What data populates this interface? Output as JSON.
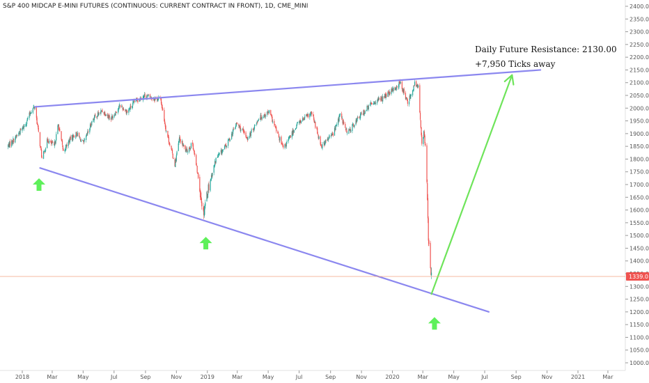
{
  "chart_data": {
    "type": "candlestick",
    "title": "S&P 400 MIDCAP E-MINI FUTURES (CONTINUOUS: CURRENT CONTRACT IN FRONT), 1D, CME_MINI",
    "x_axis": {
      "type": "date",
      "tick_labels": [
        {
          "label": "2018",
          "date": "2018-01-01"
        },
        {
          "label": "Mar",
          "date": "2018-03-01"
        },
        {
          "label": "May",
          "date": "2018-05-01"
        },
        {
          "label": "Jul",
          "date": "2018-07-01"
        },
        {
          "label": "Sep",
          "date": "2018-09-01"
        },
        {
          "label": "Nov",
          "date": "2018-11-01"
        },
        {
          "label": "2019",
          "date": "2019-01-01"
        },
        {
          "label": "Mar",
          "date": "2019-03-01"
        },
        {
          "label": "May",
          "date": "2019-05-01"
        },
        {
          "label": "Jul",
          "date": "2019-07-01"
        },
        {
          "label": "Sep",
          "date": "2019-09-01"
        },
        {
          "label": "Nov",
          "date": "2019-11-01"
        },
        {
          "label": "2020",
          "date": "2020-01-01"
        },
        {
          "label": "Mar",
          "date": "2020-03-01"
        },
        {
          "label": "May",
          "date": "2020-05-01"
        },
        {
          "label": "Jul",
          "date": "2020-07-01"
        },
        {
          "label": "Sep",
          "date": "2020-09-01"
        },
        {
          "label": "Nov",
          "date": "2020-11-01"
        },
        {
          "label": "2021",
          "date": "2021-01-01"
        },
        {
          "label": "Mar",
          "date": "2021-03-01"
        }
      ]
    },
    "y_axis": {
      "range": [
        950,
        2410
      ],
      "ticks": [
        "2400.0",
        "2350.0",
        "2300.0",
        "2250.0",
        "2200.0",
        "2150.0",
        "2100.0",
        "2050.0",
        "2000.0",
        "1950.0",
        "1900.0",
        "1850.0",
        "1800.0",
        "1750.0",
        "1700.0",
        "1650.0",
        "1600.0",
        "1550.0",
        "1500.0",
        "1450.0",
        "1400.0",
        "1350.0",
        "1300.0",
        "1250.0",
        "1200.0",
        "1150.0",
        "1100.0",
        "1050.0",
        "1000.0",
        "950.0"
      ]
    },
    "price_series": {
      "name": "",
      "points": [
        {
          "date": "2017-12-03",
          "close": 1850
        },
        {
          "date": "2017-12-17",
          "close": 1880
        },
        {
          "date": "2018-01-05",
          "close": 1930
        },
        {
          "date": "2018-01-20",
          "close": 1995
        },
        {
          "date": "2018-01-26",
          "close": 2005
        },
        {
          "date": "2018-02-09",
          "close": 1800
        },
        {
          "date": "2018-02-20",
          "close": 1875
        },
        {
          "date": "2018-03-05",
          "close": 1850
        },
        {
          "date": "2018-03-13",
          "close": 1935
        },
        {
          "date": "2018-03-23",
          "close": 1830
        },
        {
          "date": "2018-04-06",
          "close": 1880
        },
        {
          "date": "2018-04-18",
          "close": 1900
        },
        {
          "date": "2018-05-02",
          "close": 1860
        },
        {
          "date": "2018-05-21",
          "close": 1960
        },
        {
          "date": "2018-06-08",
          "close": 1990
        },
        {
          "date": "2018-06-25",
          "close": 1960
        },
        {
          "date": "2018-07-13",
          "close": 2010
        },
        {
          "date": "2018-07-27",
          "close": 1985
        },
        {
          "date": "2018-08-13",
          "close": 2030
        },
        {
          "date": "2018-08-31",
          "close": 2050
        },
        {
          "date": "2018-09-14",
          "close": 2040
        },
        {
          "date": "2018-10-01",
          "close": 2035
        },
        {
          "date": "2018-10-11",
          "close": 1920
        },
        {
          "date": "2018-10-29",
          "close": 1780
        },
        {
          "date": "2018-11-07",
          "close": 1880
        },
        {
          "date": "2018-11-20",
          "close": 1830
        },
        {
          "date": "2018-12-03",
          "close": 1860
        },
        {
          "date": "2018-12-13",
          "close": 1740
        },
        {
          "date": "2018-12-24",
          "close": 1590
        },
        {
          "date": "2019-01-02",
          "close": 1680
        },
        {
          "date": "2019-01-18",
          "close": 1800
        },
        {
          "date": "2019-02-08",
          "close": 1855
        },
        {
          "date": "2019-02-28",
          "close": 1940
        },
        {
          "date": "2019-03-22",
          "close": 1880
        },
        {
          "date": "2019-04-12",
          "close": 1960
        },
        {
          "date": "2019-05-03",
          "close": 1985
        },
        {
          "date": "2019-05-31",
          "close": 1840
        },
        {
          "date": "2019-06-28",
          "close": 1940
        },
        {
          "date": "2019-07-26",
          "close": 1980
        },
        {
          "date": "2019-08-14",
          "close": 1850
        },
        {
          "date": "2019-09-06",
          "close": 1900
        },
        {
          "date": "2019-09-20",
          "close": 1975
        },
        {
          "date": "2019-10-04",
          "close": 1900
        },
        {
          "date": "2019-10-25",
          "close": 1960
        },
        {
          "date": "2019-11-22",
          "close": 2020
        },
        {
          "date": "2019-12-13",
          "close": 2040
        },
        {
          "date": "2019-12-27",
          "close": 2060
        },
        {
          "date": "2020-01-10",
          "close": 2085
        },
        {
          "date": "2020-01-17",
          "close": 2100
        },
        {
          "date": "2020-01-31",
          "close": 2020
        },
        {
          "date": "2020-02-14",
          "close": 2095
        },
        {
          "date": "2020-02-21",
          "close": 2080
        },
        {
          "date": "2020-02-26",
          "close": 1930
        },
        {
          "date": "2020-02-28",
          "close": 1870
        },
        {
          "date": "2020-03-03",
          "close": 1900
        },
        {
          "date": "2020-03-06",
          "close": 1850
        },
        {
          "date": "2020-03-09",
          "close": 1720
        },
        {
          "date": "2020-03-12",
          "close": 1480
        },
        {
          "date": "2020-03-16",
          "close": 1360
        },
        {
          "date": "2020-03-18",
          "close": 1339
        }
      ]
    },
    "last_price": "1339.0",
    "trendlines": [
      {
        "name": "upper-resistance-line",
        "color": "#8b87ef",
        "from": {
          "date": "2018-01-26",
          "value": 2005
        },
        "to": {
          "date": "2020-10-19",
          "value": 2150
        }
      },
      {
        "name": "lower-support-line",
        "color": "#8b87ef",
        "from": {
          "date": "2018-02-05",
          "value": 1765
        },
        "to": {
          "date": "2020-07-09",
          "value": 1200
        }
      },
      {
        "name": "projection-line",
        "color": "#6ee45a",
        "from": {
          "date": "2020-03-18",
          "value": 1270
        },
        "to": {
          "date": "2020-08-24",
          "value": 2130
        }
      }
    ],
    "annotations": [
      {
        "text": "Daily Future Resistance: 2130.00"
      },
      {
        "text": "+7,950 Ticks away"
      }
    ],
    "up_arrows": [
      {
        "date": "2018-02-03",
        "value": 1700
      },
      {
        "date": "2018-12-29",
        "value": 1470
      },
      {
        "date": "2020-03-24",
        "value": 1155
      }
    ],
    "colors": {
      "candle_up": "#26a69a",
      "candle_down": "#ef5350",
      "arrow": "#5ef05a",
      "trendline": "#8b87ef",
      "projection": "#6ee45a",
      "last_price_line": "#f0a080",
      "last_price_tag": "#ef5350"
    },
    "grid": false,
    "legend": "none"
  }
}
